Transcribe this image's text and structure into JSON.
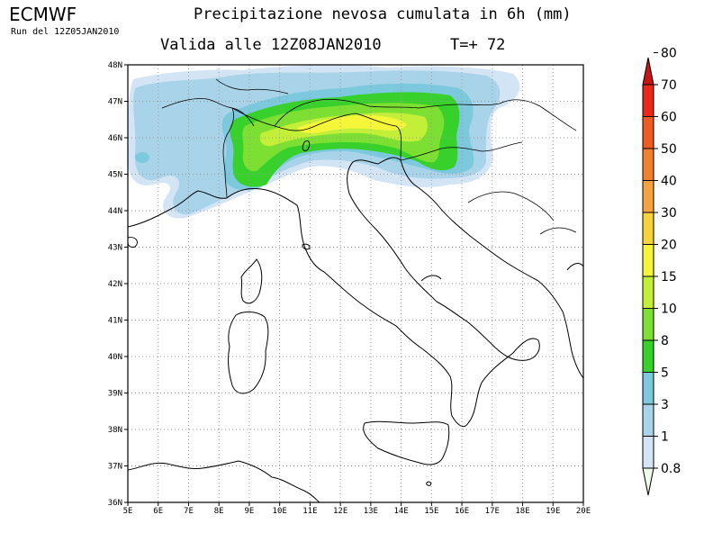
{
  "header": {
    "brand": "ECMWF",
    "run": "Run del 12Z05JAN2010",
    "title": "Precipitazione nevosa cumulata in 6h (mm)",
    "valid": "Valida alle 12Z08JAN2010",
    "tstep": "T=+ 72"
  },
  "map": {
    "lat_labels": [
      "48N",
      "47N",
      "46N",
      "45N",
      "44N",
      "43N",
      "42N",
      "41N",
      "40N",
      "39N",
      "38N",
      "37N",
      "36N"
    ],
    "lon_labels": [
      "5E",
      "6E",
      "7E",
      "8E",
      "9E",
      "10E",
      "11E",
      "12E",
      "13E",
      "14E",
      "15E",
      "16E",
      "17E",
      "18E",
      "19E",
      "20E"
    ],
    "lon_range": [
      5,
      20
    ],
    "lat_range": [
      36,
      48
    ],
    "grid": true
  },
  "colorbar": {
    "labels": [
      "0.8",
      "1",
      "3",
      "5",
      "8",
      "10",
      "15",
      "20",
      "30",
      "40",
      "50",
      "60",
      "70",
      "80"
    ],
    "colors": [
      "#f0fae8",
      "#d3e4f5",
      "#a9d3e8",
      "#7cc9de",
      "#38d02a",
      "#7cdf32",
      "#c3ef38",
      "#f5f53a",
      "#f7d23a",
      "#f4a340",
      "#f08030",
      "#ee5a22",
      "#e9281b",
      "#c81414"
    ]
  },
  "precip_colors": {
    "lightest": "#f0fae8",
    "lightblue": "#d3e4f5",
    "blue": "#a9d3e8",
    "cyan": "#7cc9de",
    "green": "#38d02a",
    "lime": "#7cdf32",
    "yellowgreen": "#c3ef38",
    "yellow": "#f5f53a",
    "orange": "#f7d23a"
  }
}
